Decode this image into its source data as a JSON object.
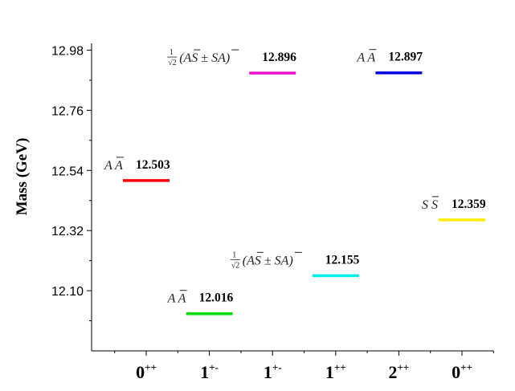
{
  "chart_data": {
    "type": "scatter",
    "ylabel": "Mass (GeV)",
    "ylim": [
      11.88,
      12.996
    ],
    "yticks": [
      "12.98",
      "12.76",
      "12.54",
      "12.32",
      "12.10"
    ],
    "ytick_values": [
      12.98,
      12.76,
      12.54,
      12.32,
      12.1
    ],
    "categories": [
      {
        "main": "0",
        "sup": "++"
      },
      {
        "main": "1",
        "sup": "+-"
      },
      {
        "main": "1",
        "sup": "+-"
      },
      {
        "main": "1",
        "sup": "++"
      },
      {
        "main": "2",
        "sup": "++"
      },
      {
        "main": "0",
        "sup": "++"
      }
    ],
    "levels": [
      {
        "category_index": 0,
        "value": 12.503,
        "label": "12.503",
        "color": "#ff0000",
        "config": "AA"
      },
      {
        "category_index": 1,
        "value": 12.016,
        "label": "12.016",
        "color": "#00dd00",
        "config": "AA"
      },
      {
        "category_index": 2,
        "value": 12.896,
        "label": "12.896",
        "color": "#ee11cc",
        "config": "mix"
      },
      {
        "category_index": 3,
        "value": 12.155,
        "label": "12.155",
        "color": "#00eeee",
        "config": "mix"
      },
      {
        "category_index": 4,
        "value": 12.897,
        "label": "12.897",
        "color": "#0000dd",
        "config": "AA"
      },
      {
        "category_index": 5,
        "value": 12.359,
        "label": "12.359",
        "color": "#ffee00",
        "config": "SS"
      }
    ]
  }
}
